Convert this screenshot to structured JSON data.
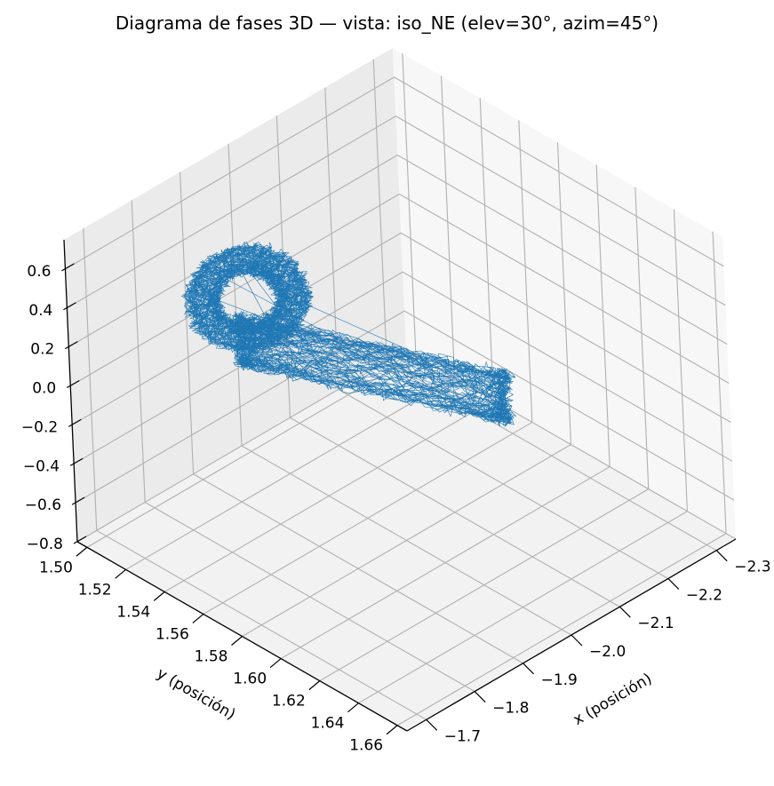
{
  "chart_data": {
    "type": "line",
    "projection": "3d",
    "title": "Diagrama de fases 3D — vista: iso_NE (elev=30°, azim=45°)",
    "view": {
      "elev": 30,
      "azim": 45
    },
    "xlabel": "x (posición)",
    "ylabel": "y (posición)",
    "zlabel": "",
    "xlim": [
      -2.34,
      -1.66
    ],
    "ylim": [
      1.495,
      1.665
    ],
    "zlim": [
      -0.8,
      0.75
    ],
    "x_ticks": [
      "−2.3",
      "−2.2",
      "−2.1",
      "−2.0",
      "−1.9",
      "−1.8",
      "−1.7"
    ],
    "y_ticks": [
      "1.50",
      "1.52",
      "1.54",
      "1.56",
      "1.58",
      "1.60",
      "1.62",
      "1.64",
      "1.66"
    ],
    "z_ticks": [
      "0.6",
      "0.4",
      "0.2",
      "0.0",
      "−0.2",
      "−0.4",
      "−0.6",
      "−0.8"
    ],
    "grid": true,
    "series": [
      {
        "color": "#1f77b4",
        "line_width": 0.6,
        "description_of_shape": "chaotic trajectory: loop lobe near x≈-1.9, y≈1.52, z∈[-0.2,0.7]; dense band stretching to x≈-2.3, y≈1.56, z≈-0.6",
        "anchors": {
          "lobe_top": {
            "x": -1.88,
            "y": 1.525,
            "z": 0.62
          },
          "lobe_left": {
            "x": -1.98,
            "y": 1.5,
            "z": 0.45
          },
          "lobe_right": {
            "x": -1.98,
            "y": 1.54,
            "z": 0.4
          },
          "junction": {
            "x": -2.0,
            "y": 1.54,
            "z": -0.05
          },
          "lower_left": {
            "x": -1.92,
            "y": 1.5,
            "z": -0.25
          },
          "tail_end": {
            "x": -2.29,
            "y": 1.56,
            "z": -0.62
          }
        }
      }
    ]
  }
}
